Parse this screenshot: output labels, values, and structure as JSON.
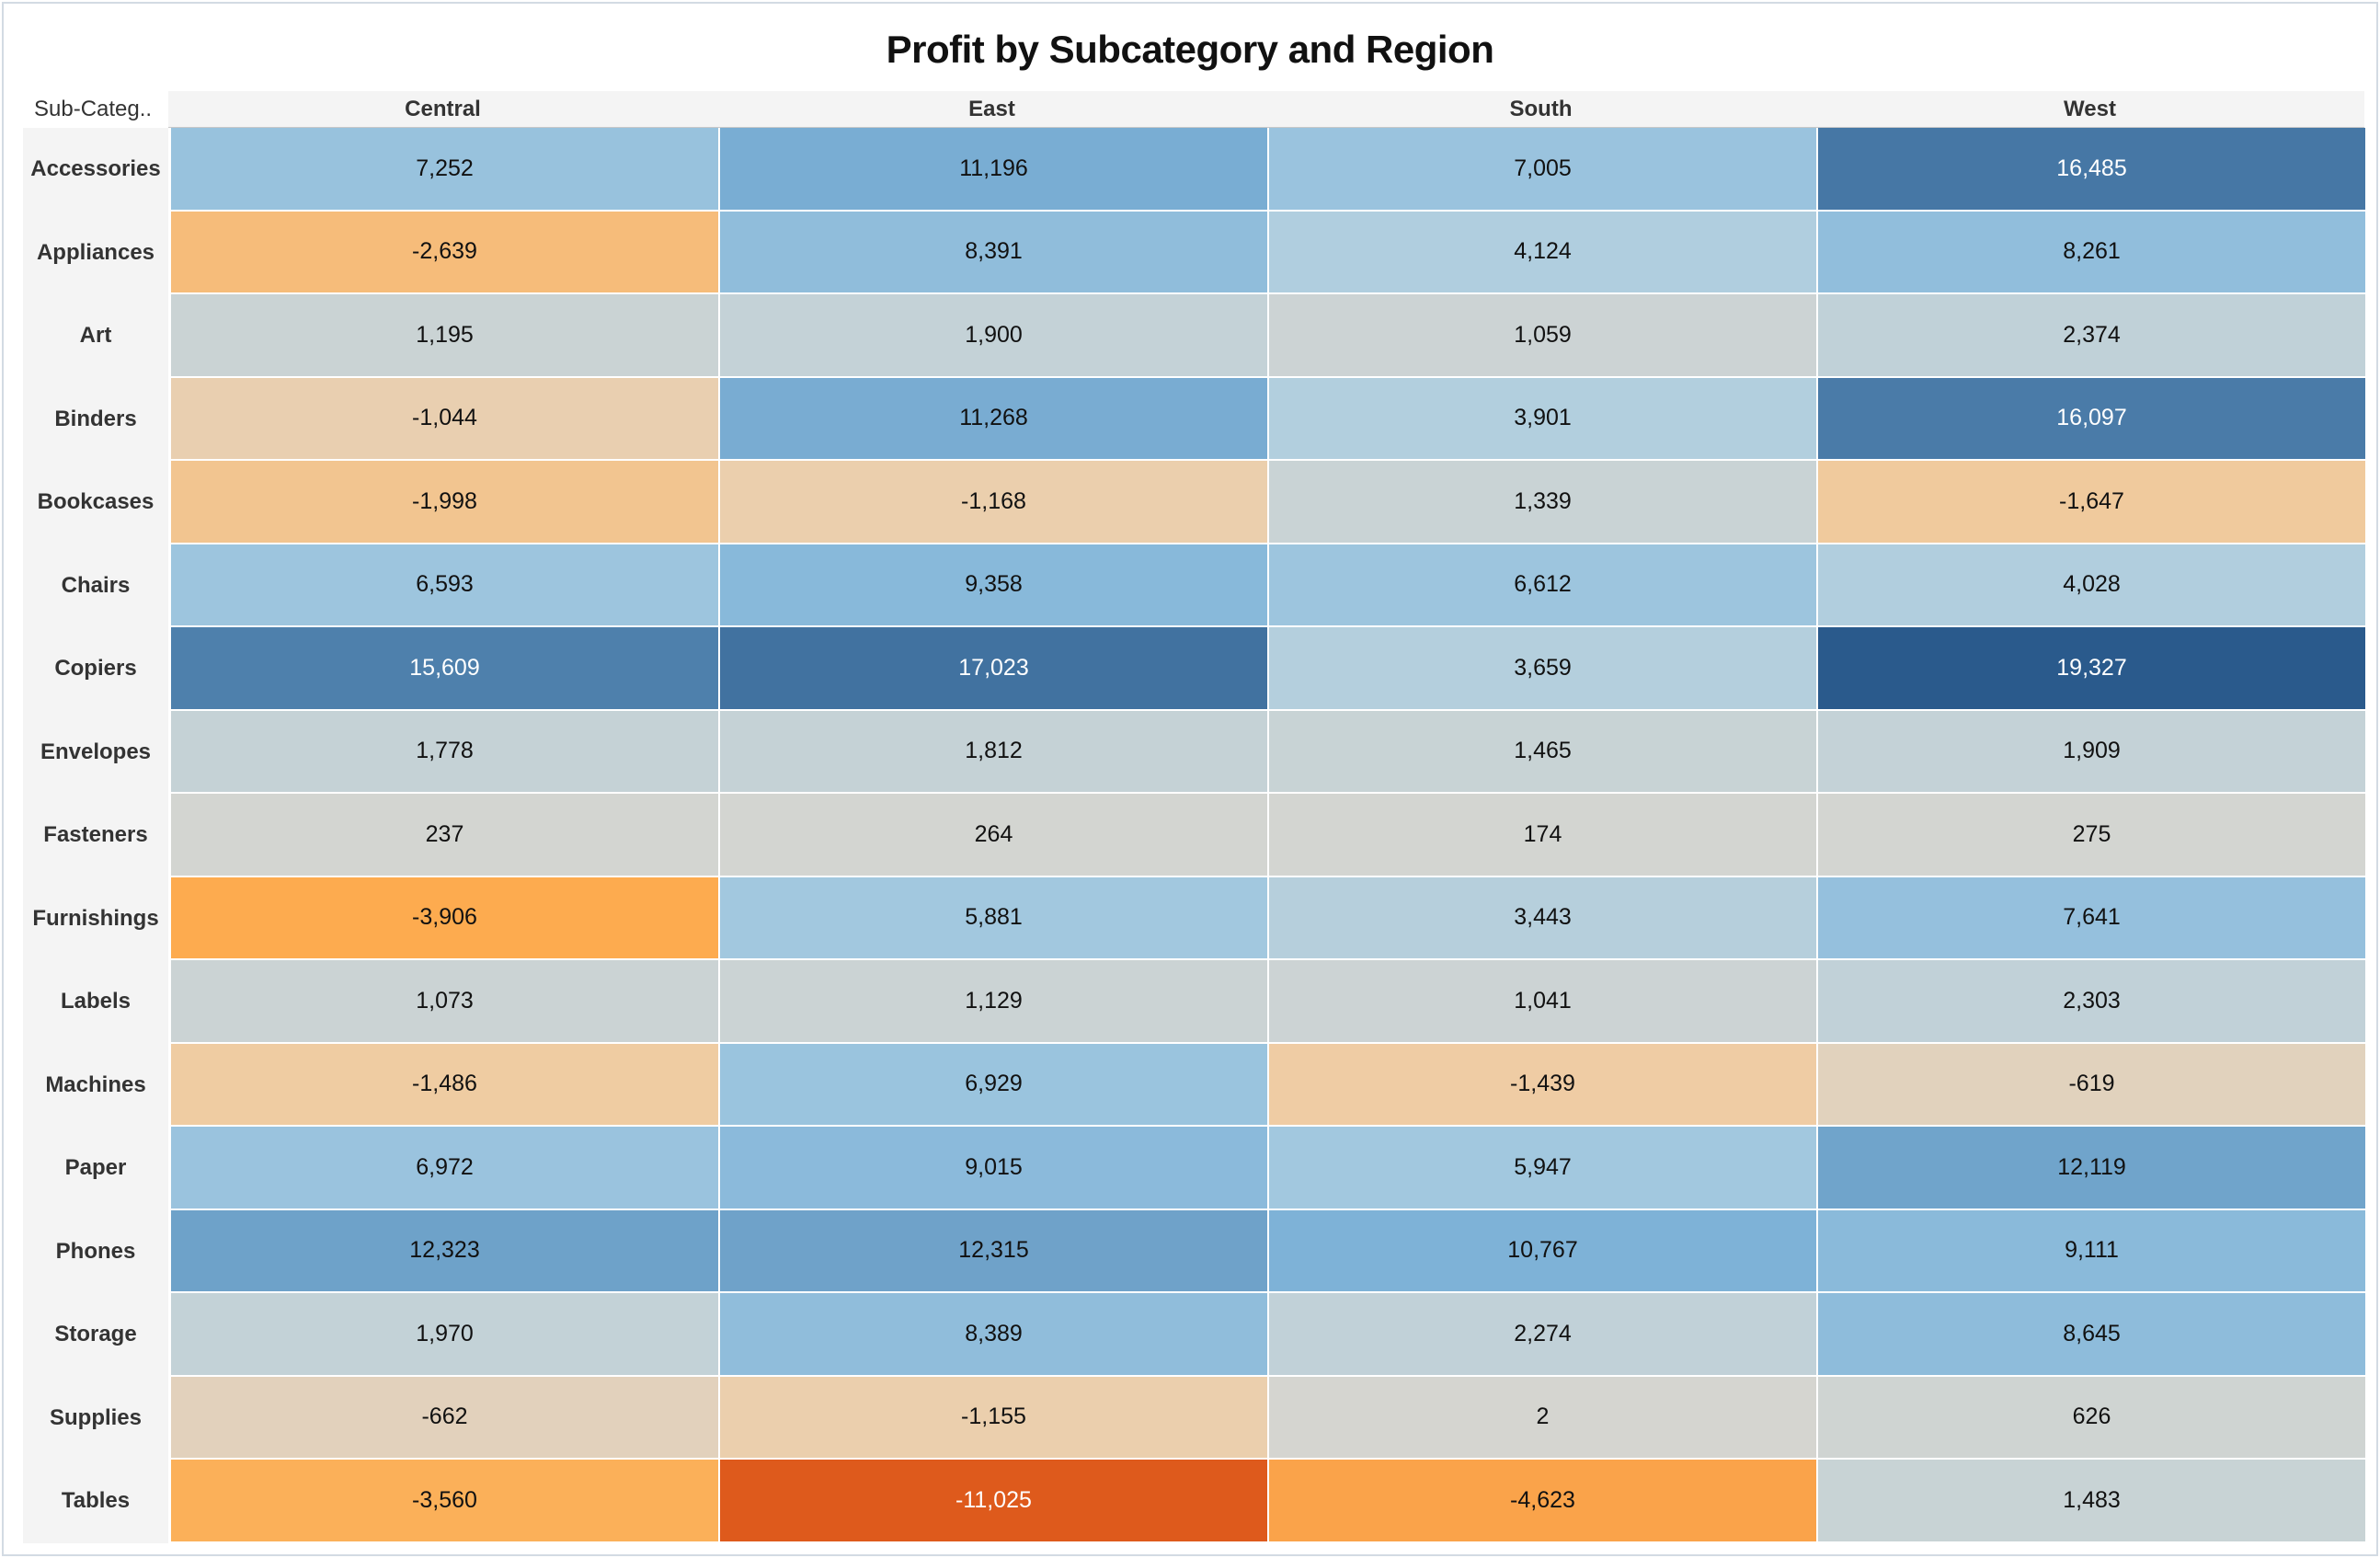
{
  "title": "Profit by Subcategory and Region",
  "corner_label": "Sub-Categ..",
  "chart_data": {
    "type": "heatmap",
    "title": "Profit by Subcategory and Region",
    "columns": [
      "Central",
      "East",
      "South",
      "West"
    ],
    "rows": [
      "Accessories",
      "Appliances",
      "Art",
      "Binders",
      "Bookcases",
      "Chairs",
      "Copiers",
      "Envelopes",
      "Fasteners",
      "Furnishings",
      "Labels",
      "Machines",
      "Paper",
      "Phones",
      "Storage",
      "Supplies",
      "Tables"
    ],
    "values": [
      [
        7252,
        11196,
        7005,
        16485
      ],
      [
        -2639,
        8391,
        4124,
        8261
      ],
      [
        1195,
        1900,
        1059,
        2374
      ],
      [
        -1044,
        11268,
        3901,
        16097
      ],
      [
        -1998,
        -1168,
        1339,
        -1647
      ],
      [
        6593,
        9358,
        6612,
        4028
      ],
      [
        15609,
        17023,
        3659,
        19327
      ],
      [
        1778,
        1812,
        1465,
        1909
      ],
      [
        237,
        264,
        174,
        275
      ],
      [
        -3906,
        5881,
        3443,
        7641
      ],
      [
        1073,
        1129,
        1041,
        2303
      ],
      [
        -1486,
        6929,
        -1439,
        -619
      ],
      [
        6972,
        9015,
        5947,
        12119
      ],
      [
        12323,
        12315,
        10767,
        9111
      ],
      [
        1970,
        8389,
        2274,
        8645
      ],
      [
        -662,
        -1155,
        2,
        626
      ],
      [
        -3560,
        -11025,
        -4623,
        1483
      ]
    ],
    "color_scale": {
      "type": "diverging",
      "negative_extreme": "#de5a1c",
      "negative_mid": "#fdac4f",
      "neutral": "#d5d5d0",
      "positive_mid": "#7fb3d8",
      "positive_extreme": "#2a5a8c",
      "min": -11025,
      "max": 19327
    },
    "legend": "none",
    "grid": true
  }
}
